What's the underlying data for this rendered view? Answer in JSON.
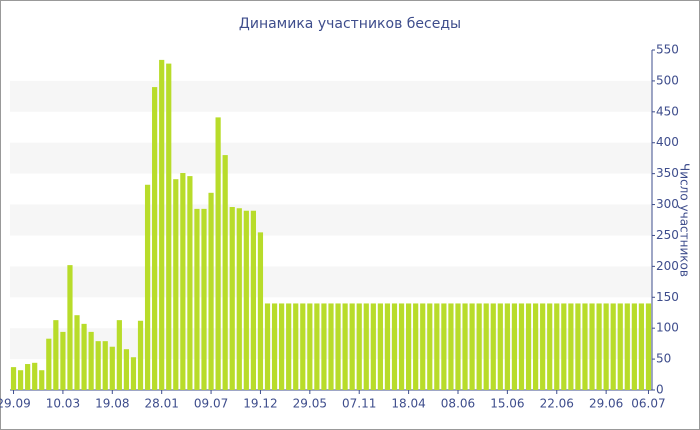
{
  "chart_data": {
    "type": "bar",
    "title": "Динамика участников беседы",
    "y_axis_label": "Число участников",
    "categories": [
      "29.09",
      null,
      null,
      null,
      null,
      null,
      null,
      "10.03",
      null,
      null,
      null,
      null,
      null,
      null,
      "19.08",
      null,
      null,
      null,
      null,
      null,
      null,
      "28.01",
      null,
      null,
      null,
      null,
      null,
      null,
      "09.07",
      null,
      null,
      null,
      null,
      null,
      null,
      "19.12",
      null,
      null,
      null,
      null,
      null,
      null,
      "29.05",
      null,
      null,
      null,
      null,
      null,
      null,
      "07.11",
      null,
      null,
      null,
      null,
      null,
      null,
      "18.04",
      null,
      null,
      null,
      null,
      null,
      null,
      "08.06",
      null,
      null,
      null,
      null,
      null,
      null,
      "15.06",
      null,
      null,
      null,
      null,
      null,
      null,
      "22.06",
      null,
      null,
      null,
      null,
      null,
      null,
      "29.06",
      null,
      null,
      null,
      null,
      null,
      "06.07"
    ],
    "values": [
      37,
      32,
      42,
      44,
      32,
      83,
      113,
      94,
      202,
      121,
      107,
      94,
      79,
      79,
      70,
      113,
      66,
      53,
      112,
      332,
      490,
      534,
      528,
      341,
      351,
      346,
      293,
      293,
      319,
      441,
      380,
      296,
      294,
      290,
      290,
      255,
      140,
      140,
      140,
      140,
      140,
      140,
      140,
      140,
      140,
      140,
      140,
      140,
      140,
      140,
      140,
      140,
      140,
      140,
      140,
      140,
      140,
      140,
      140,
      140,
      140,
      140,
      140,
      140,
      140,
      140,
      140,
      140,
      140,
      140,
      140,
      140,
      140,
      140,
      140,
      140,
      140,
      140,
      140,
      140,
      140,
      140,
      140,
      140,
      140,
      140,
      140,
      140,
      140,
      140,
      140
    ],
    "color": "#b8dc2a",
    "ylim": [
      0,
      550
    ],
    "yticks": [
      0,
      50,
      100,
      150,
      200,
      250,
      300,
      350,
      400,
      450,
      500,
      550
    ],
    "grid": true
  }
}
